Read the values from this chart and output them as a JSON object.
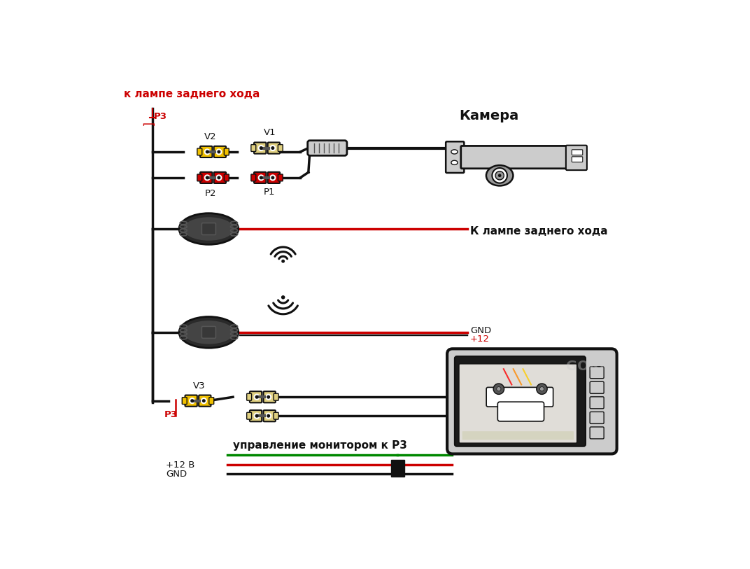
{
  "bg_color": "#ffffff",
  "labels": {
    "camera": "Камера",
    "k_lampe_top": "к лампе заднего хода",
    "k_lampe_right": "К лампе заднего хода",
    "P3_top": "P3",
    "P1": "P1",
    "P2": "P2",
    "V1": "V1",
    "V2": "V2",
    "V3": "V3",
    "P3_bottom": "P3",
    "GND_label": "GND",
    "plus12_label": "+12",
    "plus12V_label": "+12 В",
    "GND_bottom_label": "GND",
    "upravlenie": "управление монитором к P3"
  },
  "colors": {
    "black": "#111111",
    "red": "#cc0000",
    "yellow": "#f0c000",
    "yellow2": "#d4b800",
    "green": "#008800",
    "white": "#ffffff",
    "gray_light": "#cccccc",
    "gray_mid": "#999999",
    "gray_dark": "#555555",
    "device_body": "#2a2a2a",
    "device_mid": "#444444",
    "device_btn": "#383838",
    "beige": "#e0d080"
  }
}
